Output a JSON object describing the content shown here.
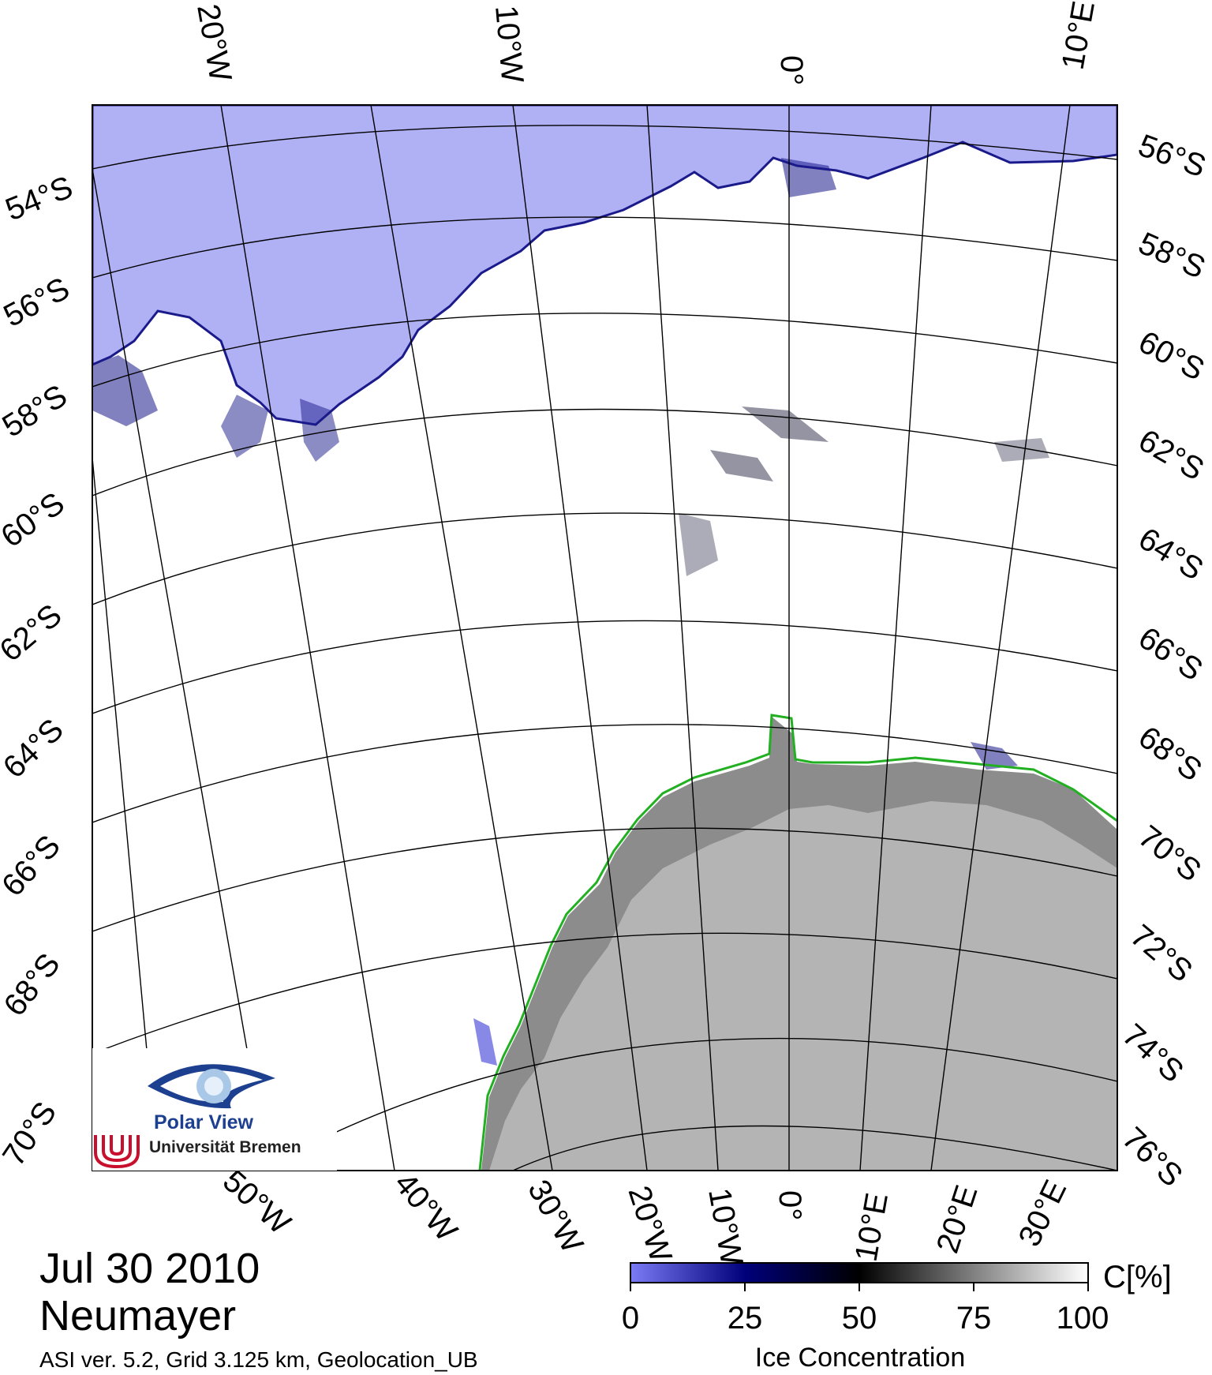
{
  "map": {
    "top_longitude_labels": [
      "20°W",
      "10°W",
      "0°",
      "10°E"
    ],
    "bottom_longitude_labels": [
      "50°W",
      "40°W",
      "30°W",
      "20°W",
      "10°W",
      "0°",
      "10°E",
      "20°E",
      "30°E"
    ],
    "left_latitude_labels": [
      "54°S",
      "56°S",
      "58°S",
      "60°S",
      "62°S",
      "64°S",
      "66°S",
      "68°S",
      "70°S"
    ],
    "right_latitude_labels": [
      "56°S",
      "58°S",
      "60°S",
      "62°S",
      "64°S",
      "66°S",
      "68°S",
      "70°S",
      "72°S",
      "74°S",
      "76°S"
    ],
    "colors": {
      "open_water": "#b0b0f5",
      "ice": "#ffffff",
      "land_shelf": "#8c8c8c",
      "land": "#b4b4b4",
      "coastline": "#22b022",
      "grid": "#000000"
    }
  },
  "logo": {
    "name": "Polar View",
    "university": "Universität Bremen"
  },
  "footer": {
    "date": "Jul 30 2010",
    "station": "Neumayer",
    "meta": "ASI ver. 5.2,  Grid 3.125 km, Geolocation_UB"
  },
  "colorbar": {
    "ticks": [
      "0",
      "25",
      "50",
      "75",
      "100"
    ],
    "unit": "C[%]",
    "title": "Ice Concentration",
    "gradient_colors": [
      "#7a7af5",
      "#00007a",
      "#000000",
      "#808080",
      "#ffffff"
    ]
  }
}
